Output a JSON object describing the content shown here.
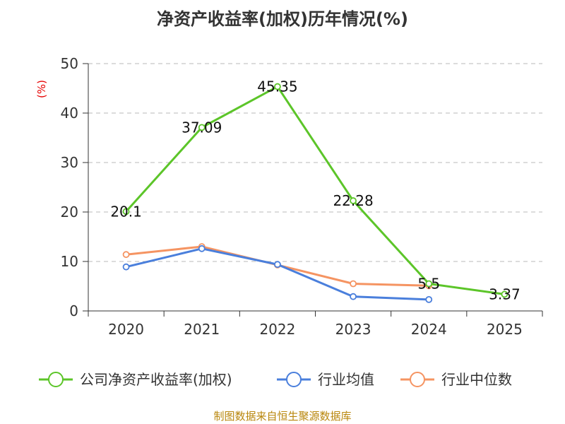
{
  "chart_data": {
    "type": "line",
    "title": "净资产收益率(加权)历年情况(%)",
    "ylabel": "(%)",
    "xlabel": "",
    "categories": [
      "2020",
      "2021",
      "2022",
      "2023",
      "2024",
      "2025"
    ],
    "ylim": [
      0,
      50
    ],
    "yticks": [
      0,
      10,
      20,
      30,
      40,
      50
    ],
    "grid": true,
    "legend_position": "bottom",
    "series": [
      {
        "name": "公司净资产收益率(加权)",
        "color": "#5cc529",
        "values": [
          20.1,
          37.09,
          45.35,
          22.28,
          5.5,
          3.37
        ],
        "labels": [
          "20.1",
          "37.09",
          "45.35",
          "22.28",
          "5.5",
          "3.37"
        ]
      },
      {
        "name": "行业均值",
        "color": "#4a7fdc",
        "values": [
          8.9,
          12.6,
          9.4,
          2.9,
          2.3,
          null
        ]
      },
      {
        "name": "行业中位数",
        "color": "#f59462",
        "values": [
          11.4,
          13.0,
          9.3,
          5.5,
          5.1,
          null
        ]
      }
    ],
    "source": "制图数据来自恒生聚源数据库"
  }
}
